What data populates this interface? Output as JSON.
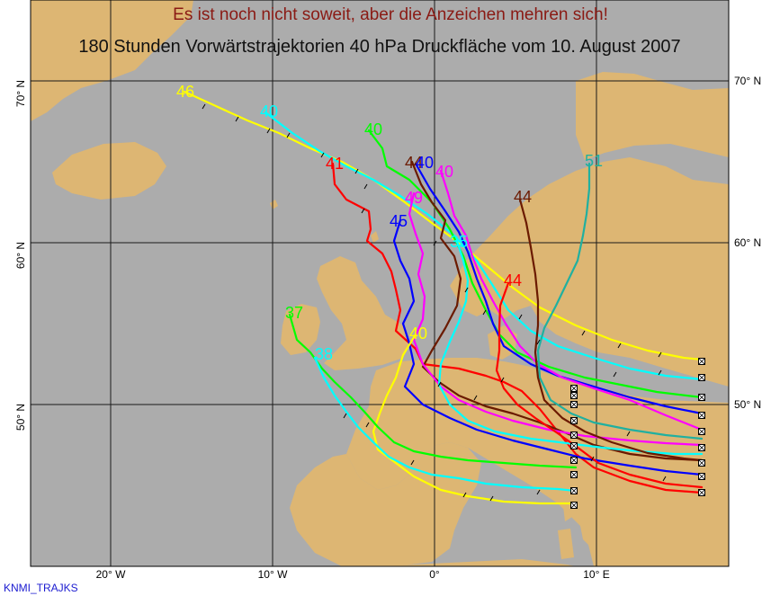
{
  "title": {
    "line1": "Es ist noch nicht soweit, aber die Anzeichen mehren sich!",
    "line2": "180 Stunden Vorwärtstrajektorien 40 hPa Druckfläche vom 10. August 2007"
  },
  "credit": "KNMI_TRAJKS",
  "colors": {
    "ocean": "#acacac",
    "land": "#ddb673",
    "grid": "#1a1a1a",
    "title1": "#8a1a14",
    "title2": "#111111"
  },
  "axes": {
    "longitude_labels": [
      "20° W",
      "10° W",
      "0°",
      "10° E"
    ],
    "latitude_labels_left": [
      "70° N",
      "60° N",
      "50° N"
    ],
    "latitude_labels_right": [
      "70° N",
      "60° N",
      "50° N"
    ]
  },
  "trajectories": [
    {
      "name": "yellow-north",
      "color": "#ffff00",
      "label": "46"
    },
    {
      "name": "cyan-north",
      "color": "#00ffff",
      "label": "40"
    },
    {
      "name": "green-north",
      "color": "#00ff00",
      "label": "40"
    },
    {
      "name": "red-north",
      "color": "#ff0000",
      "label": "41"
    },
    {
      "name": "brown-north",
      "color": "#6b1a00",
      "label": "44"
    },
    {
      "name": "blue-north",
      "color": "#0000ff",
      "label": "40"
    },
    {
      "name": "magenta-north",
      "color": "#ff00ff",
      "label": "40"
    },
    {
      "name": "magenta-mid",
      "color": "#ff00ff",
      "label": "49"
    },
    {
      "name": "blue-mid",
      "color": "#0000ff",
      "label": "45"
    },
    {
      "name": "cyan-mid",
      "color": "#00ffff",
      "label": "35"
    },
    {
      "name": "teal-east",
      "color": "#20b0a0",
      "label": "51"
    },
    {
      "name": "brown-east",
      "color": "#6b1a00",
      "label": "44"
    },
    {
      "name": "red-east",
      "color": "#ff0000",
      "label": "44"
    },
    {
      "name": "yellow-mid",
      "color": "#ffff00",
      "label": "40"
    },
    {
      "name": "green-west",
      "color": "#00ff00",
      "label": "37"
    },
    {
      "name": "cyan-west",
      "color": "#00ffff",
      "label": "38"
    }
  ],
  "end_marker_count": 20
}
